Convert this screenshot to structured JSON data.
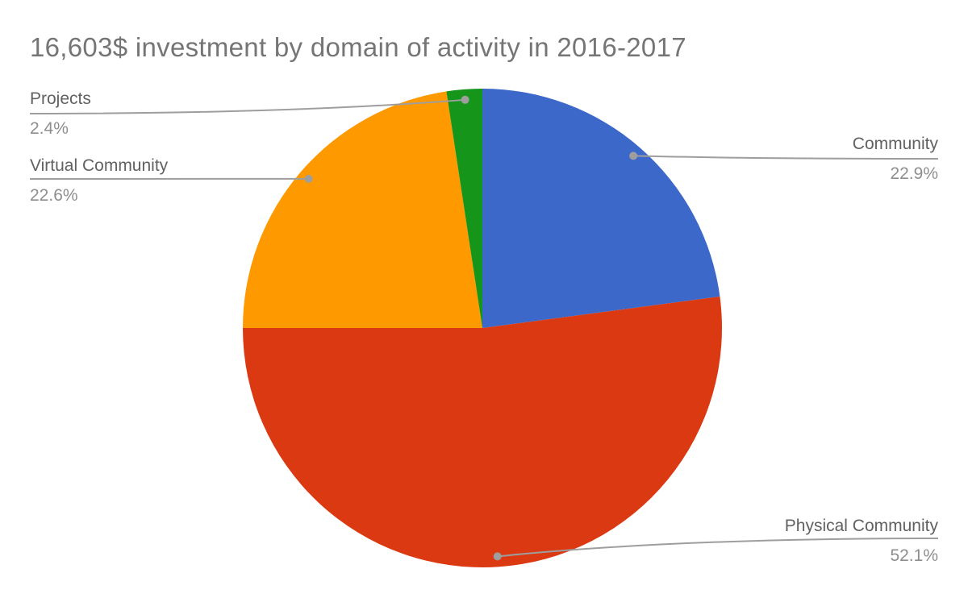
{
  "chart_data": {
    "type": "pie",
    "title": "16,603$ investment by domain of activity in 2016-2017",
    "start_angle_deg": 0,
    "direction": "clockwise",
    "legend_position": "outside-callouts",
    "background_color": "#FFFFFF",
    "title_color": "#757575",
    "label_color": "#616161",
    "percent_color": "#8E8E8E",
    "leader_line_color": "#9E9E9E",
    "slices": [
      {
        "label": "Community",
        "value": 22.9,
        "pct_text": "22.9%",
        "color": "#3B68C9"
      },
      {
        "label": "Physical Community",
        "value": 52.1,
        "pct_text": "52.1%",
        "color": "#DB3912"
      },
      {
        "label": "Virtual Community",
        "value": 22.6,
        "pct_text": "22.6%",
        "color": "#FF9900"
      },
      {
        "label": "Projects",
        "value": 2.4,
        "pct_text": "2.4%",
        "color": "#15961B"
      }
    ]
  }
}
